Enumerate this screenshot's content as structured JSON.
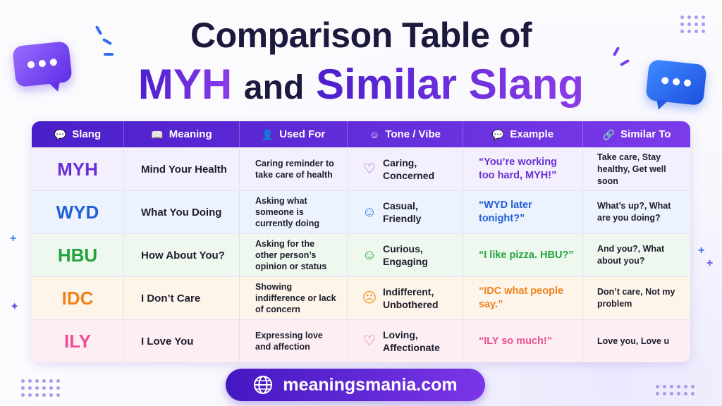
{
  "title": {
    "line1": "Comparison Table of",
    "line2_a": "MYH",
    "line2_b": "and",
    "line2_c": "Similar Slang"
  },
  "header": [
    {
      "label": "Slang",
      "icon": "chat-bubble-icon"
    },
    {
      "label": "Meaning",
      "icon": "book-icon"
    },
    {
      "label": "Used For",
      "icon": "person-icon"
    },
    {
      "label": "Tone / Vibe",
      "icon": "smiley-icon"
    },
    {
      "label": "Example",
      "icon": "chat-bubble-icon"
    },
    {
      "label": "Similar To",
      "icon": "link-icon"
    }
  ],
  "rows": [
    {
      "slang": "MYH",
      "meaning": "Mind Your Health",
      "used_for": "Caring reminder to take care of health",
      "tone": "Caring, Concerned",
      "tone_icon": "heart-icon",
      "example": "“You’re working too hard, MYH!”",
      "similar": "Take care, Stay healthy, Get well soon",
      "color": "#6a2fd6",
      "bg": "#f3effc"
    },
    {
      "slang": "WYD",
      "meaning": "What You Doing",
      "used_for": "Asking what someone is currently doing",
      "tone": "Casual, Friendly",
      "tone_icon": "smiley-icon",
      "example": "“WYD later tonight?”",
      "similar": "What’s up?, What are you doing?",
      "color": "#1e5fd8",
      "bg": "#edf3fd"
    },
    {
      "slang": "HBU",
      "meaning": "How About You?",
      "used_for": "Asking for the other person’s opinion or status",
      "tone": "Curious, Engaging",
      "tone_icon": "smiley-icon",
      "example": "“I like pizza. HBU?”",
      "similar": "And you?, What about you?",
      "color": "#23a43a",
      "bg": "#eef8ef"
    },
    {
      "slang": "IDC",
      "meaning": "I Don’t Care",
      "used_for": "Showing indifference or lack of concern",
      "tone": "Indifferent, Unbothered",
      "tone_icon": "neutral-face-icon",
      "example": "“IDC what people say.”",
      "similar": "Don’t care, Not my problem",
      "color": "#f0821e",
      "bg": "#fdf4ea"
    },
    {
      "slang": "ILY",
      "meaning": "I Love You",
      "used_for": "Expressing love and affection",
      "tone": "Loving, Affectionate",
      "tone_icon": "heart-icon",
      "example": "“ILY so much!”",
      "similar": "Love you, Love u",
      "color": "#ec4f90",
      "bg": "#fdeef4"
    }
  ],
  "tone_icon_colors": [
    "#8a55e0",
    "#2f80ed",
    "#2fae45",
    "#f0951e",
    "#ec4f90"
  ],
  "footer": {
    "site": "meaningsmania.com",
    "icon": "globe-icon"
  }
}
